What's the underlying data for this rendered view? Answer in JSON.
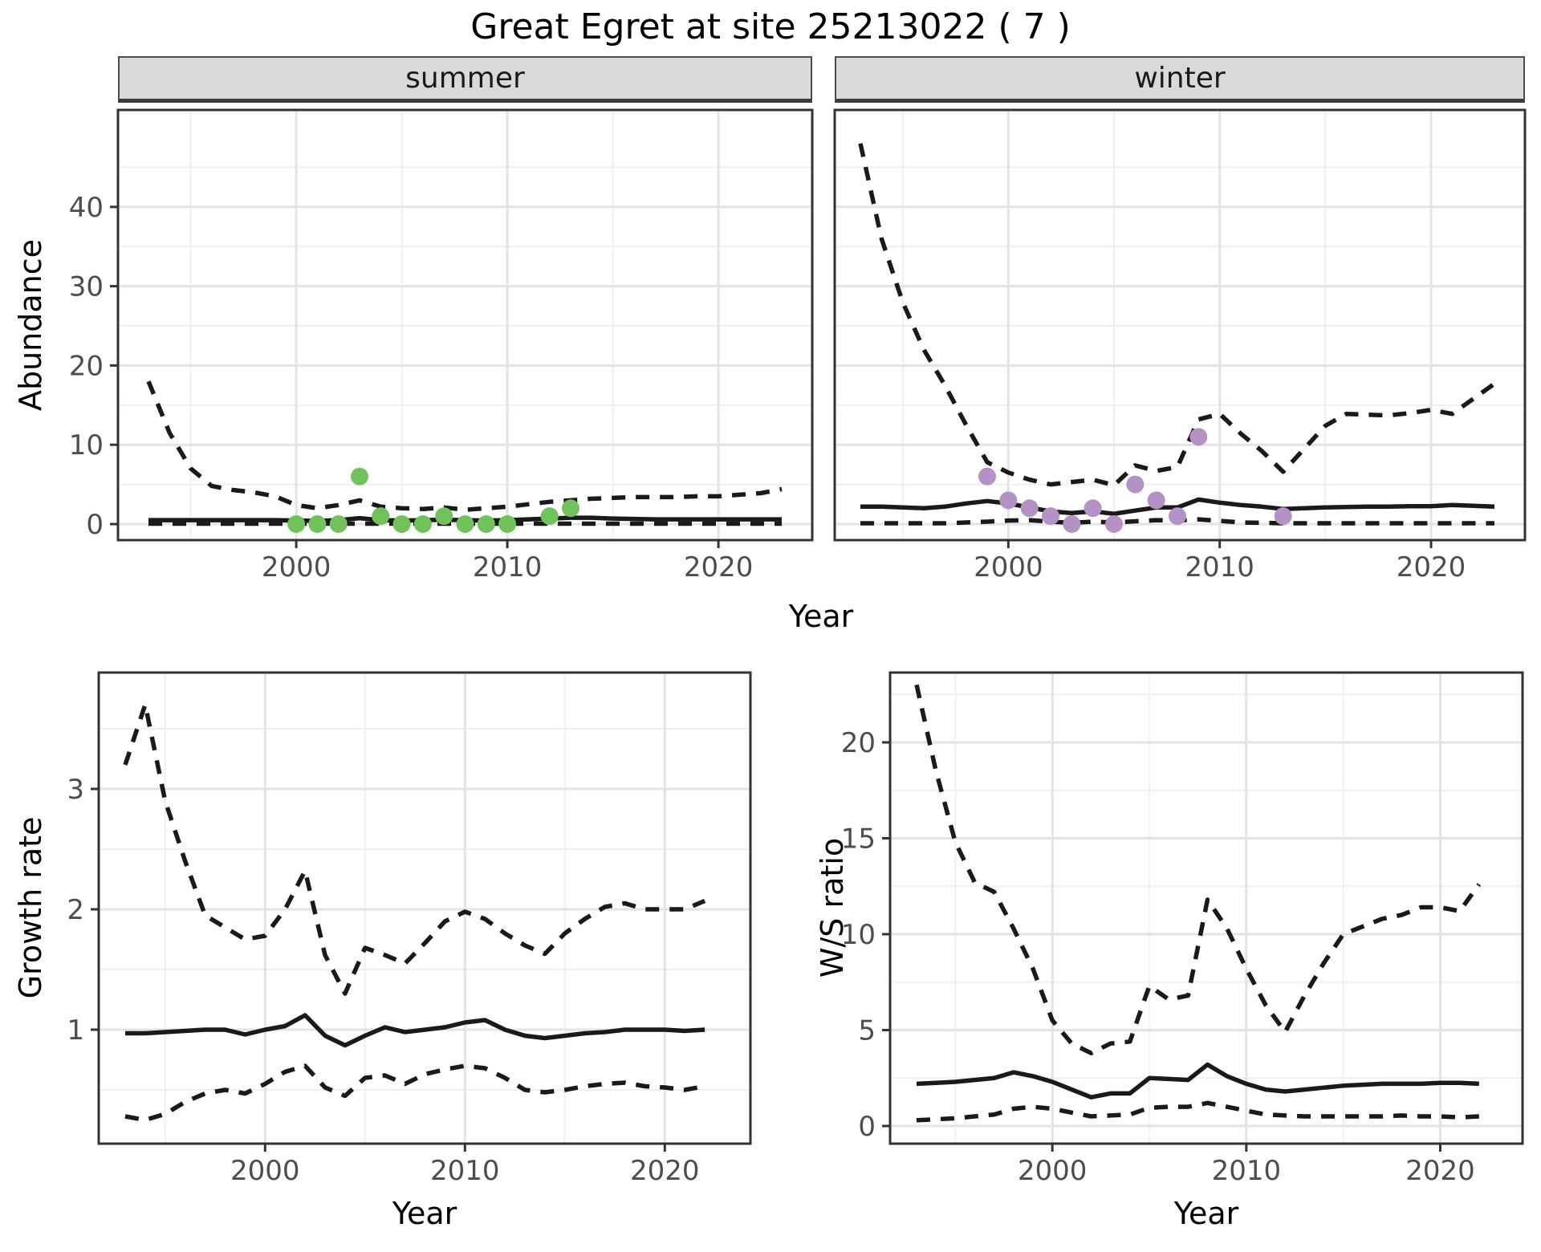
{
  "title": "Great Egret at site 25213022 ( 7 )",
  "facets": [
    {
      "label": "summer"
    },
    {
      "label": "winter"
    }
  ],
  "axes": {
    "abundance": "Abundance",
    "year": "Year",
    "growth_rate": "Growth rate",
    "ws_ratio": "W/S ratio"
  },
  "colors": {
    "summer_points": "#72c25c",
    "winter_points": "#b592c6",
    "line": "#1a1a1a",
    "strip_background": "#d9d9d9",
    "grid_major": "#e3e3e3",
    "grid_minor": "#efefef",
    "panel_border": "#333333",
    "tick_text": "#4d4d4d"
  },
  "chart_data": [
    {
      "id": "abundance-summer",
      "type": "line",
      "facet": "summer",
      "title": "Abundance (summer facet)",
      "xlabel": "Year",
      "ylabel": "Abundance",
      "x_range": [
        1993,
        2023
      ],
      "ylim": [
        0,
        52
      ],
      "x_ticks": [
        2000,
        2010,
        2020
      ],
      "x_minor": [
        1995,
        2005,
        2015
      ],
      "y_ticks": [
        0,
        10,
        20,
        30,
        40
      ],
      "y_minor": [
        5,
        15,
        25,
        35,
        45
      ],
      "start_year": 1993,
      "series": [
        {
          "name": "lower-ci",
          "style": "dashed",
          "values": [
            0.05,
            0.05,
            0.05,
            0.05,
            0.05,
            0.05,
            0.05,
            0.05,
            0.05,
            0.05,
            0.05,
            0.05,
            0.05,
            0.05,
            0.05,
            0.05,
            0.05,
            0.05,
            0.05,
            0.05,
            0.05,
            0.05,
            0.05,
            0.05,
            0.05,
            0.05,
            0.05,
            0.05,
            0.05,
            0.05,
            0.05
          ]
        },
        {
          "name": "upper-ci",
          "style": "dashed",
          "values": [
            18,
            11.5,
            7,
            4.8,
            4.3,
            4.0,
            3.5,
            2.4,
            2.0,
            2.4,
            3.0,
            2.2,
            2.0,
            1.9,
            2.1,
            1.8,
            2.0,
            2.2,
            2.5,
            2.8,
            3.0,
            3.2,
            3.3,
            3.4,
            3.4,
            3.4,
            3.5,
            3.5,
            3.7,
            3.9,
            4.4
          ]
        },
        {
          "name": "median",
          "style": "solid",
          "values": [
            0.5,
            0.5,
            0.5,
            0.5,
            0.5,
            0.5,
            0.5,
            0.45,
            0.4,
            0.5,
            0.75,
            0.5,
            0.45,
            0.5,
            0.55,
            0.5,
            0.45,
            0.5,
            0.6,
            0.7,
            0.8,
            0.8,
            0.7,
            0.65,
            0.6,
            0.6,
            0.6,
            0.6,
            0.6,
            0.6,
            0.6
          ]
        }
      ],
      "points": {
        "color": "#72c25c",
        "data": [
          [
            2000,
            0
          ],
          [
            2001,
            0
          ],
          [
            2002,
            0
          ],
          [
            2003,
            6
          ],
          [
            2004,
            1
          ],
          [
            2005,
            0
          ],
          [
            2006,
            0
          ],
          [
            2007,
            1
          ],
          [
            2008,
            0
          ],
          [
            2009,
            0
          ],
          [
            2010,
            0
          ],
          [
            2012,
            1
          ],
          [
            2013,
            2
          ]
        ]
      }
    },
    {
      "id": "abundance-winter",
      "type": "line",
      "facet": "winter",
      "title": "Abundance (winter facet)",
      "xlabel": "Year",
      "ylabel": "Abundance",
      "x_range": [
        1993,
        2023
      ],
      "ylim": [
        0,
        52
      ],
      "x_ticks": [
        2000,
        2010,
        2020
      ],
      "x_minor": [
        1995,
        2005,
        2015
      ],
      "y_ticks": [],
      "y_minor": [
        5,
        15,
        25,
        35,
        45
      ],
      "y_grid_major": [
        0,
        10,
        20,
        30,
        40
      ],
      "start_year": 1993,
      "series": [
        {
          "name": "lower-ci",
          "style": "dashed",
          "values": [
            0.1,
            0.1,
            0.1,
            0.1,
            0.1,
            0.2,
            0.3,
            0.45,
            0.5,
            0.3,
            0.15,
            0.3,
            0.2,
            0.35,
            0.5,
            0.45,
            0.6,
            0.4,
            0.2,
            0.15,
            0.1,
            0.1,
            0.1,
            0.1,
            0.1,
            0.1,
            0.1,
            0.1,
            0.1,
            0.1,
            0.1
          ]
        },
        {
          "name": "upper-ci",
          "style": "dashed",
          "values": [
            48,
            36,
            28,
            22,
            17.5,
            12.5,
            7.8,
            6.5,
            5.6,
            5.0,
            5.3,
            5.6,
            4.9,
            7.4,
            6.7,
            7.2,
            13.2,
            13.9,
            11.4,
            9.2,
            6.6,
            9.5,
            12.4,
            13.9,
            13.8,
            13.7,
            14.0,
            14.4,
            13.9,
            15.8,
            17.7
          ]
        },
        {
          "name": "median",
          "style": "solid",
          "values": [
            2.2,
            2.2,
            2.1,
            2.0,
            2.2,
            2.6,
            2.9,
            2.6,
            2.1,
            1.6,
            1.4,
            1.6,
            1.3,
            1.7,
            2.1,
            2.1,
            3.1,
            2.7,
            2.4,
            2.2,
            1.9,
            2.0,
            2.1,
            2.15,
            2.2,
            2.2,
            2.25,
            2.25,
            2.4,
            2.3,
            2.2
          ]
        }
      ],
      "points": {
        "color": "#b592c6",
        "data": [
          [
            1999,
            6
          ],
          [
            2000,
            3
          ],
          [
            2001,
            2
          ],
          [
            2002,
            1
          ],
          [
            2003,
            0
          ],
          [
            2004,
            2
          ],
          [
            2005,
            0
          ],
          [
            2006,
            5
          ],
          [
            2007,
            3
          ],
          [
            2008,
            1
          ],
          [
            2009,
            11
          ],
          [
            2013,
            1
          ]
        ]
      }
    },
    {
      "id": "growth-rate",
      "type": "line",
      "facet": null,
      "title": "Growth rate",
      "xlabel": "Year",
      "ylabel": "Growth rate",
      "x_range": [
        1993,
        2023
      ],
      "ylim": [
        0.1,
        3.95
      ],
      "x_ticks": [
        2000,
        2010,
        2020
      ],
      "x_minor": [
        1995,
        2005,
        2015
      ],
      "y_ticks": [
        1,
        2,
        3
      ],
      "y_minor": [
        0.5,
        1.5,
        2.5,
        3.5
      ],
      "start_year": 1993,
      "series": [
        {
          "name": "lower-ci",
          "style": "dashed",
          "values": [
            0.28,
            0.25,
            0.3,
            0.4,
            0.47,
            0.5,
            0.47,
            0.55,
            0.65,
            0.7,
            0.52,
            0.45,
            0.6,
            0.62,
            0.55,
            0.63,
            0.67,
            0.7,
            0.68,
            0.6,
            0.5,
            0.48,
            0.5,
            0.53,
            0.55,
            0.56,
            0.53,
            0.52,
            0.5,
            0.53
          ]
        },
        {
          "name": "upper-ci",
          "style": "dashed",
          "values": [
            3.2,
            3.7,
            2.9,
            2.4,
            1.95,
            1.85,
            1.75,
            1.78,
            2.0,
            2.32,
            1.62,
            1.3,
            1.68,
            1.62,
            1.55,
            1.72,
            1.9,
            1.98,
            1.92,
            1.8,
            1.7,
            1.63,
            1.8,
            1.92,
            2.02,
            2.05,
            2.0,
            2.0,
            2.0,
            2.07
          ]
        },
        {
          "name": "median",
          "style": "solid",
          "values": [
            0.97,
            0.97,
            0.98,
            0.99,
            1.0,
            1.0,
            0.96,
            1.0,
            1.03,
            1.12,
            0.95,
            0.87,
            0.95,
            1.02,
            0.98,
            1.0,
            1.02,
            1.06,
            1.08,
            1.0,
            0.95,
            0.93,
            0.95,
            0.97,
            0.98,
            1.0,
            1.0,
            1.0,
            0.99,
            1.0
          ]
        }
      ],
      "points": null
    },
    {
      "id": "ws-ratio",
      "type": "line",
      "facet": null,
      "title": "W/S ratio",
      "xlabel": "Year",
      "ylabel": "W/S ratio",
      "x_range": [
        1993,
        2023
      ],
      "ylim": [
        0,
        23.5
      ],
      "x_ticks": [
        2000,
        2010,
        2020
      ],
      "x_minor": [
        1995,
        2005,
        2015
      ],
      "y_ticks": [
        0,
        5,
        10,
        15,
        20
      ],
      "y_minor": [
        2.5,
        7.5,
        12.5,
        17.5,
        22.5
      ],
      "start_year": 1993,
      "series": [
        {
          "name": "lower-ci",
          "style": "dashed",
          "values": [
            0.3,
            0.35,
            0.4,
            0.5,
            0.6,
            0.9,
            1.0,
            0.9,
            0.7,
            0.5,
            0.55,
            0.6,
            0.95,
            1.0,
            1.0,
            1.2,
            1.0,
            0.8,
            0.6,
            0.55,
            0.5,
            0.5,
            0.5,
            0.5,
            0.5,
            0.55,
            0.5,
            0.5,
            0.45,
            0.5
          ]
        },
        {
          "name": "upper-ci",
          "style": "dashed",
          "values": [
            23,
            18.5,
            14.8,
            12.7,
            12.2,
            10.3,
            8.2,
            5.5,
            4.3,
            3.8,
            4.3,
            4.4,
            7.3,
            6.6,
            6.8,
            11.8,
            10.3,
            8.2,
            6.3,
            4.9,
            6.8,
            8.5,
            10.0,
            10.4,
            10.8,
            11.0,
            11.4,
            11.4,
            11.2,
            12.6
          ]
        },
        {
          "name": "median",
          "style": "solid",
          "values": [
            2.2,
            2.25,
            2.3,
            2.4,
            2.5,
            2.8,
            2.6,
            2.3,
            1.9,
            1.5,
            1.7,
            1.7,
            2.5,
            2.45,
            2.4,
            3.2,
            2.6,
            2.2,
            1.9,
            1.8,
            1.9,
            2.0,
            2.1,
            2.15,
            2.2,
            2.2,
            2.2,
            2.25,
            2.25,
            2.2
          ]
        }
      ],
      "points": null
    }
  ]
}
